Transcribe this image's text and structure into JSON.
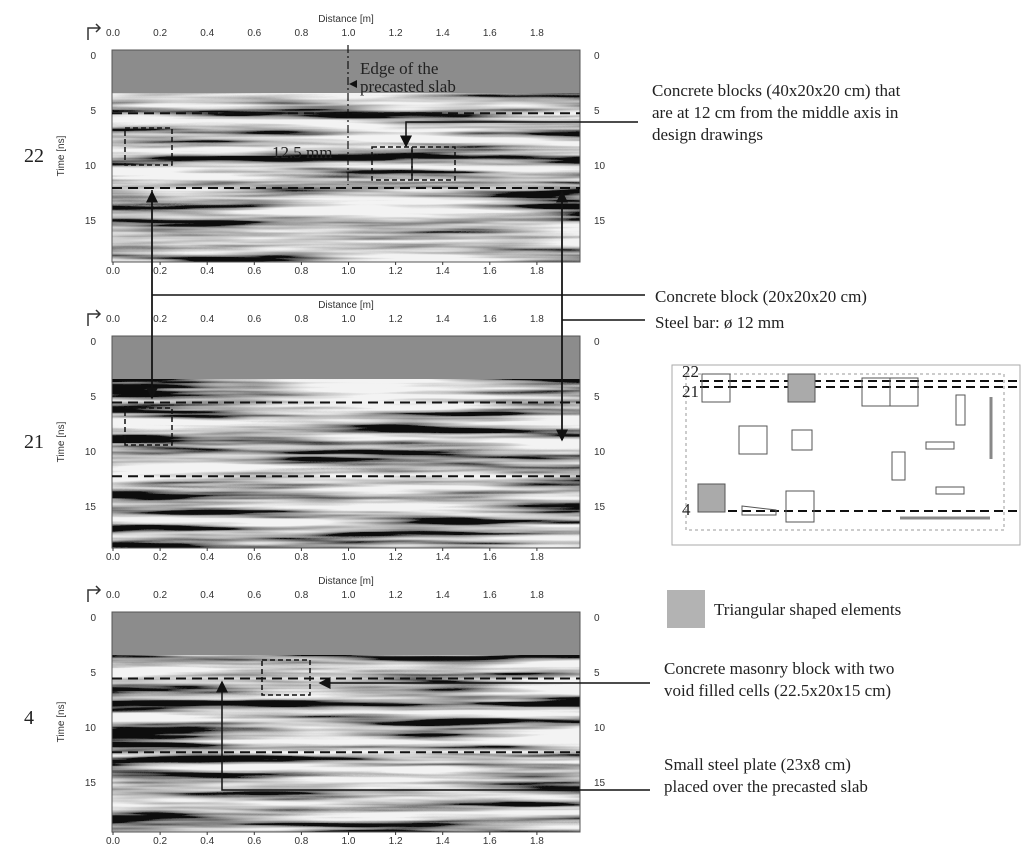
{
  "panels": [
    {
      "id": "22",
      "x_label": "Distance [m]",
      "y_label": "Time [ns]",
      "notes": [
        "Edge of the",
        "precasted slab",
        "12.5 mm"
      ]
    },
    {
      "id": "21",
      "x_label": "Distance [m]",
      "y_label": "Time [ns]"
    },
    {
      "id": "4",
      "x_label": "Distance [m]",
      "y_label": "Time [ns]"
    }
  ],
  "xticks": [
    "0.0",
    "0.2",
    "0.4",
    "0.6",
    "0.8",
    "1.0",
    "1.2",
    "1.4",
    "1.6",
    "1.8"
  ],
  "yticks": [
    "0",
    "5",
    "10",
    "15"
  ],
  "annotations": [
    [
      "Concrete blocks (40x20x20 cm) that",
      "are at 12 cm from the middle axis in",
      "design drawings"
    ],
    [
      "Concrete block (20x20x20 cm)"
    ],
    [
      "Steel bar: ø 12 mm"
    ],
    [
      "Concrete masonry block with two",
      "void filled cells (22.5x20x15 cm)"
    ],
    [
      "Small steel plate (23x8 cm)",
      "placed over the precasted slab"
    ]
  ],
  "plan": {
    "lines": [
      "22",
      "21",
      "4"
    ]
  },
  "legend": "Triangular shaped elements"
}
